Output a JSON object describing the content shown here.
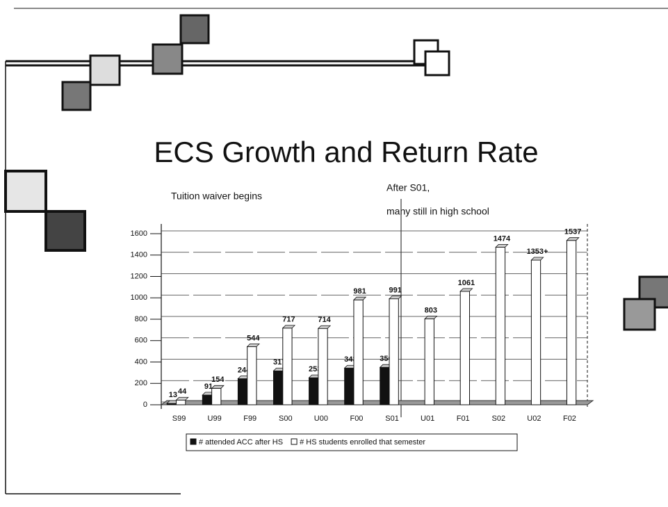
{
  "chart_data": {
    "type": "bar",
    "title": "ECS Growth and Return Rate",
    "annotations": [
      "Tuition waiver begins",
      "After S01,",
      "many still in high school"
    ],
    "categories": [
      "S99",
      "U99",
      "F99",
      "S00",
      "U00",
      "F00",
      "S01",
      "U01",
      "F01",
      "S02",
      "U02",
      "F02"
    ],
    "series": [
      {
        "name": "# attended ACC after HS",
        "color": "#111111",
        "values": [
          13,
          91,
          244,
          317,
          253,
          343,
          350,
          null,
          null,
          null,
          null,
          null
        ]
      },
      {
        "name": "# HS students enrolled that semester",
        "color": "#ffffff",
        "values": [
          44,
          154,
          544,
          717,
          714,
          981,
          991,
          803,
          1061,
          1474,
          1353,
          1537
        ],
        "value_labels": [
          "44",
          "154",
          "544",
          "717",
          "714",
          "981",
          "991",
          "803",
          "1061",
          "1474",
          "1353+",
          "1537"
        ]
      }
    ],
    "ylim": [
      0,
      1600
    ],
    "yticks": [
      0,
      200,
      400,
      600,
      800,
      1000,
      1200,
      1400,
      1600
    ],
    "grid": true,
    "legend": "bottom"
  }
}
